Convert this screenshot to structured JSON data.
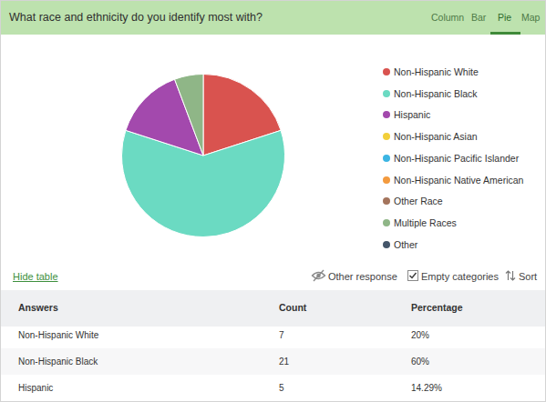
{
  "header": {
    "title": "What race and ethnicity do you identify most with?",
    "tabs": [
      "Column",
      "Bar",
      "Pie",
      "Map"
    ],
    "active_tab": "Pie"
  },
  "chart_data": {
    "type": "pie",
    "categories": [
      "Non-Hispanic White",
      "Non-Hispanic Black",
      "Hispanic",
      "Non-Hispanic Asian",
      "Non-Hispanic Pacific Islander",
      "Non-Hispanic Native American",
      "Other Race",
      "Multiple Races",
      "Other"
    ],
    "values": [
      7,
      21,
      5,
      0,
      0,
      0,
      0,
      2,
      0
    ],
    "colors": [
      "#d9534f",
      "#6bdac2",
      "#a349ad",
      "#f2cf3a",
      "#3cb5e3",
      "#f39a3e",
      "#a4745c",
      "#8fb687",
      "#45566a"
    ],
    "legend": "right"
  },
  "controls": {
    "toggle": "Hide table",
    "options": [
      "Other response",
      "Empty categories",
      "Sort"
    ]
  },
  "table": {
    "columns": [
      "Answers",
      "Count",
      "Percentage"
    ],
    "rows": [
      [
        "Non-Hispanic White",
        7,
        "20%"
      ],
      [
        "Non-Hispanic Black",
        21,
        "60%"
      ],
      [
        "Hispanic",
        5,
        "14.29%"
      ]
    ]
  }
}
